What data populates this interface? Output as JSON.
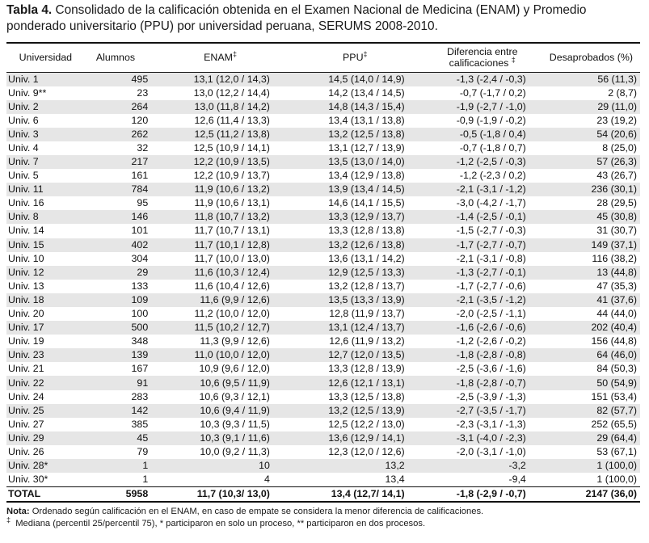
{
  "caption": {
    "label": "Tabla 4.",
    "text": "Consolidado de la calificación obtenida en el Examen Nacional de Medicina (ENAM) y Promedio ponderado universitario (PPU) por universidad peruana, SERUMS 2008-2010."
  },
  "headers": {
    "universidad": "Universidad",
    "alumnos": "Alumnos",
    "enam": "ENAM",
    "enam_sym": "‡",
    "ppu": "PPU",
    "ppu_sym": "‡",
    "dif_line1": "Diferencia entre",
    "dif_line2": "calificaciones",
    "dif_sym": "‡",
    "desaprobados": "Desaprobados (%)"
  },
  "rows": [
    [
      "Univ. 1",
      "495",
      "13,1 (12,0 / 14,3)",
      "14,5 (14,0 / 14,9)",
      "-1,3 (-2,4 / -0,3)",
      "56 (11,3)"
    ],
    [
      "Univ. 9**",
      "23",
      "13,0 (12,2 / 14,4)",
      "14,2 (13,4 / 14,5)",
      "-0,7 (-1,7 / 0,2)",
      "2 (8,7)"
    ],
    [
      "Univ. 2",
      "264",
      "13,0 (11,8 / 14,2)",
      "14,8 (14,3 / 15,4)",
      "-1,9 (-2,7 / -1,0)",
      "29 (11,0)"
    ],
    [
      "Univ. 6",
      "120",
      "12,6 (11,4 / 13,3)",
      "13,4 (13,1 / 13,8)",
      "-0,9 (-1,9 / -0,2)",
      "23 (19,2)"
    ],
    [
      "Univ. 3",
      "262",
      "12,5 (11,2 / 13,8)",
      "13,2 (12,5 / 13,8)",
      "-0,5 (-1,8 / 0,4)",
      "54 (20,6)"
    ],
    [
      "Univ. 4",
      "32",
      "12,5 (10,9 / 14,1)",
      "13,1 (12,7 / 13,9)",
      "-0,7 (-1,8 / 0,7)",
      "8 (25,0)"
    ],
    [
      "Univ. 7",
      "217",
      "12,2 (10,9 / 13,5)",
      "13,5 (13,0 / 14,0)",
      "-1,2 (-2,5 / -0,3)",
      "57 (26,3)"
    ],
    [
      "Univ. 5",
      "161",
      "12,2 (10,9 / 13,7)",
      "13,4 (12,9 / 13,8)",
      "-1,2 (-2,3 / 0,2)",
      "43 (26,7)"
    ],
    [
      "Univ. 11",
      "784",
      "11,9 (10,6 / 13,2)",
      "13,9 (13,4 / 14,5)",
      "-2,1 (-3,1 / -1,2)",
      "236 (30,1)"
    ],
    [
      "Univ. 16",
      "95",
      "11,9 (10,6 / 13,1)",
      "14,6 (14,1 / 15,5)",
      "-3,0 (-4,2 / -1,7)",
      "28 (29,5)"
    ],
    [
      "Univ. 8",
      "146",
      "11,8 (10,7 / 13,2)",
      "13,3 (12,9 / 13,7)",
      "-1,4 (-2,5 / -0,1)",
      "45 (30,8)"
    ],
    [
      "Univ. 14",
      "101",
      "11,7 (10,7 / 13,1)",
      "13,3 (12,8 / 13,8)",
      "-1,5 (-2,7 / -0,3)",
      "31 (30,7)"
    ],
    [
      "Univ. 15",
      "402",
      "11,7 (10,1 / 12,8)",
      "13,2 (12,6 / 13,8)",
      "-1,7 (-2,7 / -0,7)",
      "149 (37,1)"
    ],
    [
      "Univ. 10",
      "304",
      "11,7 (10,0 / 13,0)",
      "13,6 (13,1 / 14,2)",
      "-2,1 (-3,1 / -0,8)",
      "116 (38,2)"
    ],
    [
      "Univ. 12",
      "29",
      "11,6 (10,3 / 12,4)",
      "12,9 (12,5 / 13,3)",
      "-1,3 (-2,7 / -0,1)",
      "13 (44,8)"
    ],
    [
      "Univ. 13",
      "133",
      "11,6 (10,4 / 12,6)",
      "13,2 (12,8 / 13,7)",
      "-1,7 (-2,7 / -0,6)",
      "47 (35,3)"
    ],
    [
      "Univ. 18",
      "109",
      "11,6 (9,9 / 12,6)",
      "13,5 (13,3 / 13,9)",
      "-2,1 (-3,5 / -1,2)",
      "41 (37,6)"
    ],
    [
      "Univ. 20",
      "100",
      "11,2 (10,0 / 12,0)",
      "12,8 (11,9 / 13,7)",
      "-2,0 (-2,5 / -1,1)",
      "44 (44,0)"
    ],
    [
      "Univ. 17",
      "500",
      "11,5 (10,2 / 12,7)",
      "13,1 (12,4 / 13,7)",
      "-1,6 (-2,6 / -0,6)",
      "202 (40,4)"
    ],
    [
      "Univ. 19",
      "348",
      "11,3 (9,9 / 12,6)",
      "12,6 (11,9 / 13,2)",
      "-1,2 (-2,6 / -0,2)",
      "156 (44,8)"
    ],
    [
      "Univ. 23",
      "139",
      "11,0 (10,0 / 12,0)",
      "12,7 (12,0 / 13,5)",
      "-1,8 (-2,8 / -0,8)",
      "64 (46,0)"
    ],
    [
      "Univ. 21",
      "167",
      "10,9 (9,6 / 12,0)",
      "13,3 (12,8 / 13,9)",
      "-2,5 (-3,6 / -1,6)",
      "84 (50,3)"
    ],
    [
      "Univ. 22",
      "91",
      "10,6 (9,5 / 11,9)",
      "12,6 (12,1 / 13,1)",
      "-1,8 (-2,8 / -0,7)",
      "50 (54,9)"
    ],
    [
      "Univ. 24",
      "283",
      "10,6 (9,3 / 12,1)",
      "13,3 (12,5 / 13,8)",
      "-2,5 (-3,9 / -1,3)",
      "151 (53,4)"
    ],
    [
      "Univ. 25",
      "142",
      "10,6 (9,4 / 11,9)",
      "13,2 (12,5 / 13,9)",
      "-2,7 (-3,5 / -1,7)",
      "82 (57,7)"
    ],
    [
      "Univ. 27",
      "385",
      "10,3 (9,3 / 11,5)",
      "12,5 (12,2 / 13,0)",
      "-2,3 (-3,1 / -1,3)",
      "252 (65,5)"
    ],
    [
      "Univ. 29",
      "45",
      "10,3 (9,1 / 11,6)",
      "13,6 (12,9 / 14,1)",
      "-3,1 (-4,0 / -2,3)",
      "29 (64,4)"
    ],
    [
      "Univ. 26",
      "79",
      "10,0 (9,2 / 11,3)",
      "12,3 (12,0 / 12,6)",
      "-2,0 (-3,1 / -1,0)",
      "53 (67,1)"
    ],
    [
      "Univ. 28*",
      "1",
      "10",
      "13,2",
      "-3,2",
      "1 (100,0)"
    ],
    [
      "Univ. 30*",
      "1",
      "4",
      "13,4",
      "-9,4",
      "1 (100,0)"
    ]
  ],
  "total": [
    "TOTAL",
    "5958",
    "11,7 (10,3/ 13,0)",
    "13,4 (12,7/ 14,1)",
    "-1,8 (-2,9 / -0,7)",
    "2147 (36,0)"
  ],
  "notes": {
    "nota_label": "Nota:",
    "nota_text": "Ordenado según calificación en el ENAM, en caso de empate se considera la menor diferencia de calificaciones.",
    "sym": "‡",
    "line2": "Mediana (percentil 25/percentil 75),  *  participaron en solo un proceso,   ** participaron en dos procesos."
  }
}
